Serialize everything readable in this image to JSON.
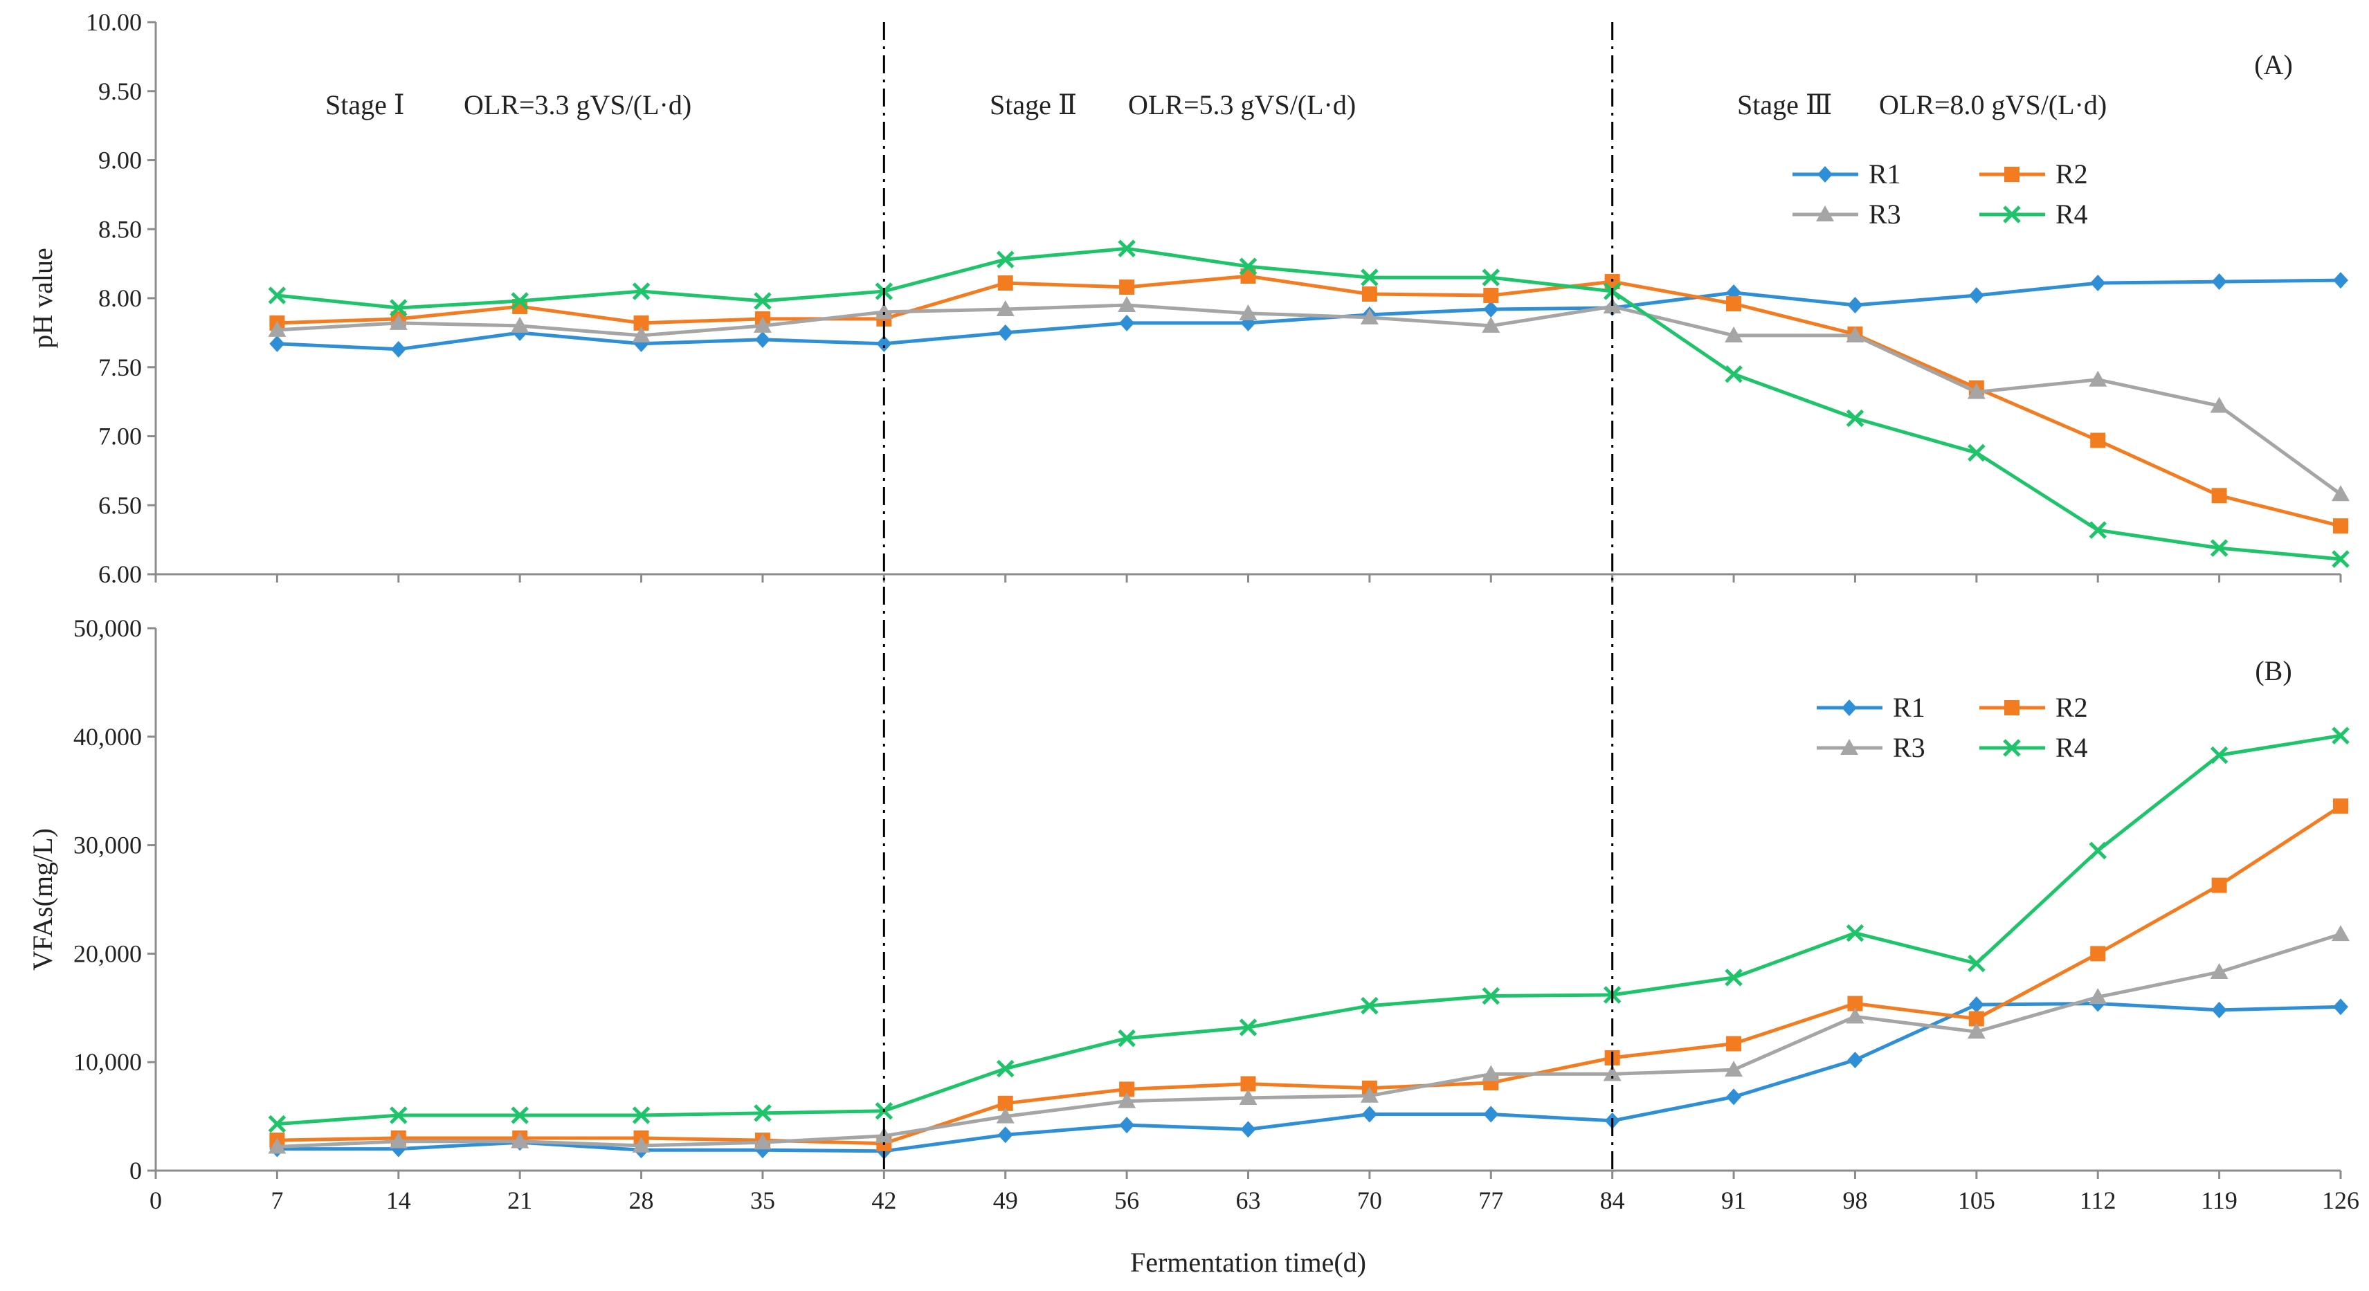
{
  "chart_data": [
    {
      "type": "line",
      "panel_label": "(A)",
      "ylabel": "pH value",
      "xlabel": "",
      "ylim": [
        6.0,
        10.0
      ],
      "xlim": [
        0,
        126
      ],
      "y_ticks": [
        "6.00",
        "6.50",
        "7.00",
        "7.50",
        "8.00",
        "8.50",
        "9.00",
        "9.50",
        "10.00"
      ],
      "x": [
        7,
        14,
        21,
        28,
        35,
        42,
        49,
        56,
        63,
        70,
        77,
        84,
        91,
        98,
        105,
        112,
        119,
        126
      ],
      "legend_position": "top-right",
      "stage_labels": [
        {
          "stage": "Stage Ⅰ",
          "olr": "OLR=3.3 gVS/(L·d)"
        },
        {
          "stage": "Stage Ⅱ",
          "olr": "OLR=5.3 gVS/(L·d)"
        },
        {
          "stage": "Stage Ⅲ",
          "olr": "OLR=8.0 gVS/(L·d)"
        }
      ],
      "series": [
        {
          "name": "R1",
          "color": "#2e8fd6",
          "marker": "diamond",
          "values": [
            7.67,
            7.63,
            7.75,
            7.67,
            7.7,
            7.67,
            7.75,
            7.82,
            7.82,
            7.88,
            7.92,
            7.93,
            8.04,
            7.95,
            8.02,
            8.11,
            8.12,
            8.13
          ]
        },
        {
          "name": "R2",
          "color": "#f47c20",
          "marker": "square",
          "values": [
            7.82,
            7.85,
            7.94,
            7.82,
            7.85,
            7.85,
            8.11,
            8.08,
            8.16,
            8.03,
            8.02,
            8.12,
            7.96,
            7.74,
            7.35,
            6.97,
            6.57,
            6.35
          ]
        },
        {
          "name": "R3",
          "color": "#a5a5a5",
          "marker": "triangle",
          "values": [
            7.77,
            7.82,
            7.8,
            7.73,
            7.8,
            7.9,
            7.92,
            7.95,
            7.89,
            7.86,
            7.8,
            7.94,
            7.73,
            7.73,
            7.32,
            7.41,
            7.22,
            6.58
          ]
        },
        {
          "name": "R4",
          "color": "#1ec46a",
          "marker": "x",
          "values": [
            8.02,
            7.93,
            7.98,
            8.05,
            7.98,
            8.05,
            8.28,
            8.36,
            8.23,
            8.15,
            8.15,
            8.05,
            7.45,
            7.13,
            6.88,
            6.32,
            6.19,
            6.11
          ]
        }
      ]
    },
    {
      "type": "line",
      "panel_label": "(B)",
      "ylabel": "VFAs(mg/L)",
      "xlabel": "Fermentation time(d)",
      "ylim": [
        0,
        50000
      ],
      "xlim": [
        0,
        126
      ],
      "y_ticks": [
        "0",
        "10,000",
        "20,000",
        "30,000",
        "40,000",
        "50,000"
      ],
      "x_ticks": [
        "0",
        "7",
        "14",
        "21",
        "28",
        "35",
        "42",
        "49",
        "56",
        "63",
        "70",
        "77",
        "84",
        "91",
        "98",
        "105",
        "112",
        "119",
        "126"
      ],
      "x": [
        7,
        14,
        21,
        28,
        35,
        42,
        49,
        56,
        63,
        70,
        77,
        84,
        91,
        98,
        105,
        112,
        119,
        126
      ],
      "legend_position": "top-right",
      "series": [
        {
          "name": "R1",
          "color": "#2e8fd6",
          "marker": "diamond",
          "values": [
            2000,
            2000,
            2600,
            1900,
            1900,
            1800,
            3300,
            4200,
            3800,
            5200,
            5200,
            4600,
            6800,
            10200,
            15300,
            15400,
            14800,
            15100
          ]
        },
        {
          "name": "R2",
          "color": "#f47c20",
          "marker": "square",
          "values": [
            2800,
            3000,
            3000,
            3000,
            2800,
            2500,
            6200,
            7500,
            8000,
            7600,
            8100,
            10400,
            11700,
            15400,
            14000,
            20000,
            26300,
            33600
          ]
        },
        {
          "name": "R3",
          "color": "#a5a5a5",
          "marker": "triangle",
          "values": [
            2200,
            2700,
            2700,
            2300,
            2600,
            3200,
            5000,
            6400,
            6700,
            6900,
            8900,
            8900,
            9300,
            14200,
            12800,
            16000,
            18300,
            21800
          ]
        },
        {
          "name": "R4",
          "color": "#1ec46a",
          "marker": "x",
          "values": [
            4300,
            5100,
            5100,
            5100,
            5300,
            5500,
            9400,
            12200,
            13200,
            15200,
            16100,
            16200,
            17800,
            21900,
            19100,
            29500,
            38300,
            40100
          ]
        }
      ]
    }
  ]
}
